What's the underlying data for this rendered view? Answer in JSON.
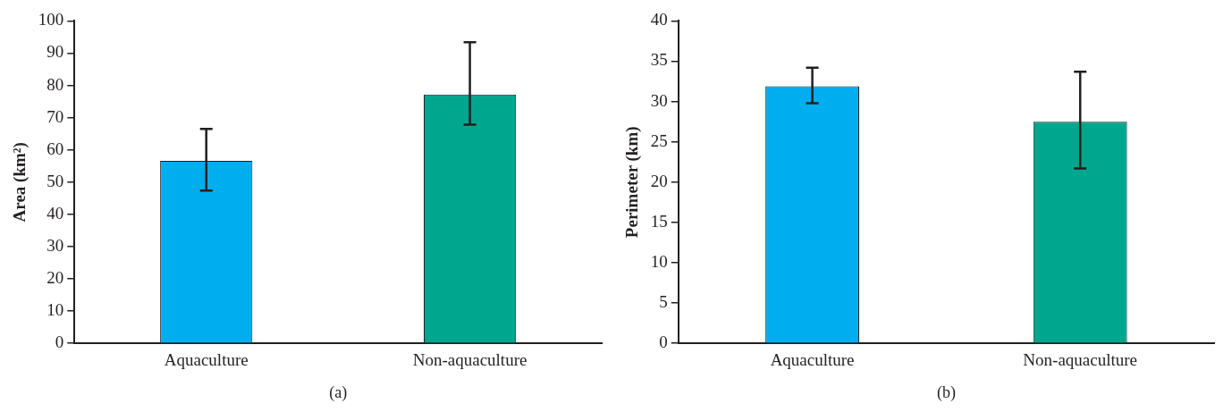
{
  "chart_data": [
    {
      "type": "bar",
      "ylabel": "Area (km²)",
      "categories": [
        "Aquaculture",
        "Non-aquaculture"
      ],
      "values": [
        56.6,
        77.2
      ],
      "colors": [
        "#00aeef",
        "#00a78e"
      ],
      "errors": [
        [
          47.4,
          66.5
        ],
        [
          67.8,
          93.4
        ]
      ],
      "ylim": [
        0,
        100
      ],
      "yticks": [
        0,
        10,
        20,
        30,
        40,
        50,
        60,
        70,
        80,
        90,
        100
      ],
      "grid": false,
      "legend": false,
      "annotations": [
        "(a)"
      ]
    },
    {
      "type": "bar",
      "ylabel": "Perimeter (km)",
      "categories": [
        "Aquaculture",
        "Non-aquaculture"
      ],
      "values": [
        31.9,
        27.5
      ],
      "colors": [
        "#00aeef",
        "#00a78e"
      ],
      "errors": [
        [
          29.8,
          34.2
        ],
        [
          21.7,
          33.7
        ]
      ],
      "ylim": [
        0,
        40
      ],
      "yticks": [
        0,
        5,
        10,
        15,
        20,
        25,
        30,
        35,
        40
      ],
      "grid": false,
      "legend": false,
      "annotations": [
        "(b)"
      ]
    }
  ]
}
